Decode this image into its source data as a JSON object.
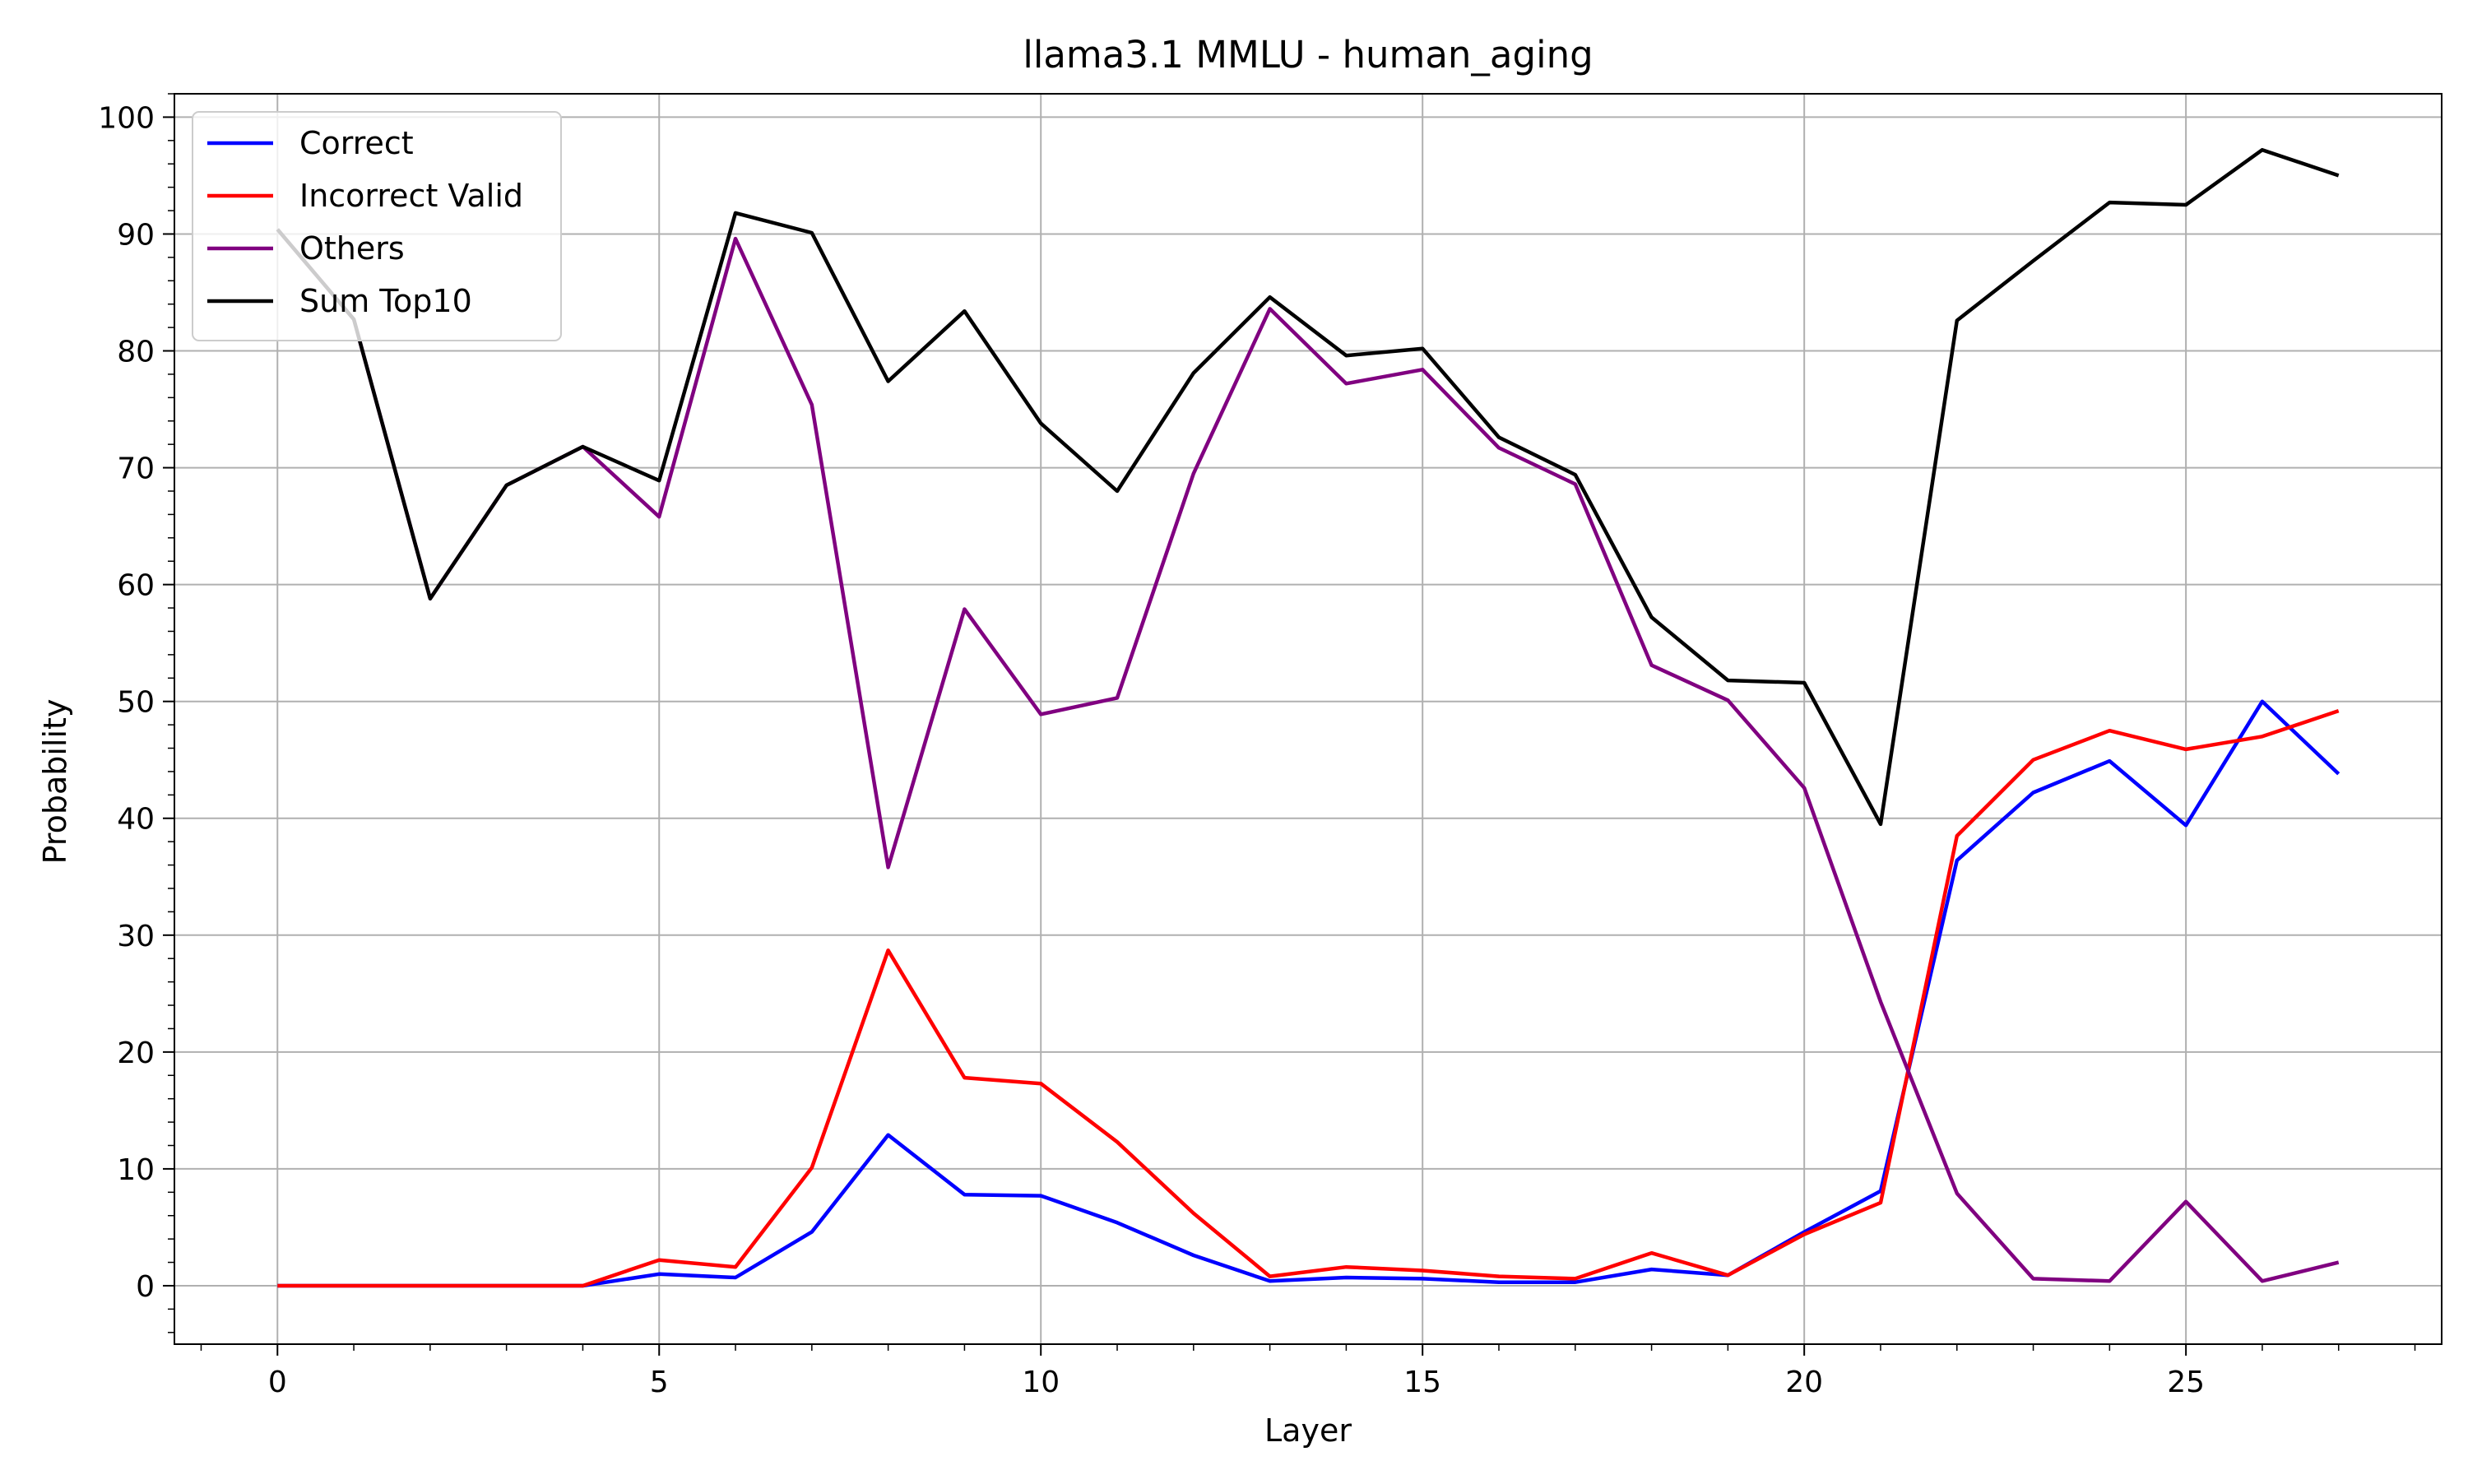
{
  "chart_data": {
    "type": "line",
    "title": "llama3.1 MMLU - human_aging",
    "xlabel": "Layer",
    "ylabel": "Probability",
    "xlim": [
      -1.35,
      28.35
    ],
    "ylim": [
      -5,
      102
    ],
    "xticks": [
      0,
      5,
      10,
      15,
      20,
      25
    ],
    "yticks": [
      0,
      10,
      20,
      30,
      40,
      50,
      60,
      70,
      80,
      90,
      100
    ],
    "grid": true,
    "legend_position": "top-left",
    "x": [
      0,
      1,
      2,
      3,
      4,
      5,
      6,
      7,
      8,
      9,
      10,
      11,
      12,
      13,
      14,
      15,
      16,
      17,
      18,
      19,
      20,
      21,
      22,
      23,
      24,
      25,
      26,
      27
    ],
    "series": [
      {
        "name": "Correct",
        "color": "#0000ff",
        "values": [
          0,
          0,
          0,
          0,
          0,
          1.0,
          0.7,
          4.6,
          12.9,
          7.8,
          7.7,
          5.4,
          2.6,
          0.4,
          0.7,
          0.6,
          0.3,
          0.3,
          1.4,
          0.9,
          4.6,
          8.1,
          36.4,
          42.2,
          44.9,
          39.4,
          50.0,
          43.8
        ]
      },
      {
        "name": "Incorrect Valid",
        "color": "#ff0000",
        "values": [
          0,
          0,
          0,
          0,
          0,
          2.2,
          1.6,
          10.1,
          28.7,
          17.8,
          17.3,
          12.3,
          6.2,
          0.8,
          1.6,
          1.3,
          0.8,
          0.6,
          2.8,
          0.9,
          4.4,
          7.1,
          38.5,
          45.0,
          47.5,
          45.9,
          47.0,
          49.2
        ]
      },
      {
        "name": "Others",
        "color": "#800080",
        "values": [
          90.4,
          82.7,
          58.8,
          68.5,
          71.8,
          65.8,
          89.6,
          75.4,
          35.8,
          57.9,
          48.9,
          50.3,
          69.5,
          83.6,
          77.2,
          78.4,
          71.7,
          68.6,
          53.1,
          50.1,
          42.6,
          24.3,
          7.9,
          0.6,
          0.4,
          7.2,
          0.4,
          2.0
        ]
      },
      {
        "name": "Sum Top10",
        "color": "#000000",
        "values": [
          90.4,
          82.7,
          58.8,
          68.5,
          71.8,
          68.9,
          91.8,
          90.1,
          77.4,
          83.4,
          73.8,
          68.0,
          78.1,
          84.6,
          79.6,
          80.2,
          72.6,
          69.4,
          57.2,
          51.8,
          51.6,
          39.5,
          82.6,
          87.7,
          92.7,
          92.5,
          97.2,
          95.0
        ]
      }
    ]
  }
}
